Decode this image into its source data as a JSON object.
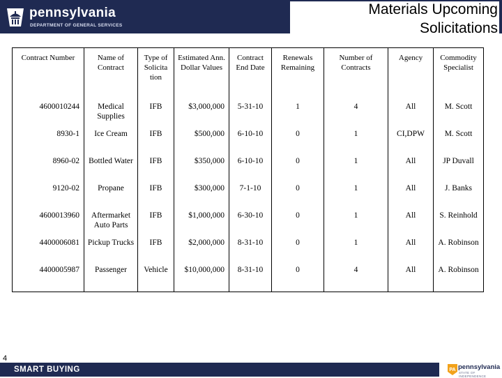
{
  "header": {
    "logo_name": "pennsylvania",
    "logo_dept": "DEPARTMENT OF GENERAL SERVICES",
    "title_line1": "Materials Upcoming",
    "title_line2": "Solicitations"
  },
  "table": {
    "columns": [
      "Contract Number",
      "Name of Contract",
      "Type of Solicita tion",
      "Estimated Ann. Dollar Values",
      "Contract End Date",
      "Renewals Remaining",
      "Number of Contracts",
      "Agency",
      "Commodity Specialist"
    ],
    "rows": [
      [
        "4600010244",
        "Medical Supplies",
        "IFB",
        "$3,000,000",
        "5-31-10",
        "1",
        "4",
        "All",
        "M. Scott"
      ],
      [
        "8930-1",
        "Ice Cream",
        "IFB",
        "$500,000",
        "6-10-10",
        "0",
        "1",
        "CI,DPW",
        "M. Scott"
      ],
      [
        "8960-02",
        "Bottled Water",
        "IFB",
        "$350,000",
        "6-10-10",
        "0",
        "1",
        "All",
        "JP Duvall"
      ],
      [
        "9120-02",
        "Propane",
        "IFB",
        "$300,000",
        "7-1-10",
        "0",
        "1",
        "All",
        "J. Banks"
      ],
      [
        "4600013960",
        "Aftermarket Auto Parts",
        "IFB",
        "$1,000,000",
        "6-30-10",
        "0",
        "1",
        "All",
        "S. Reinhold"
      ],
      [
        "4400006081",
        "Pickup Trucks",
        "IFB",
        "$2,000,000",
        "8-31-10",
        "0",
        "1",
        "All",
        "A. Robinson"
      ],
      [
        "4400005987",
        "Passenger",
        "Vehicle",
        "$10,000,000",
        "8-31-10",
        "0",
        "4",
        "All",
        "A. Robinson"
      ]
    ]
  },
  "footer": {
    "page_number": "4",
    "brand": "SMART BUYING",
    "logo_name": "pennsylvania",
    "logo_tagline": "STATE OF INDEPENDENCE",
    "badge": "PA"
  },
  "colors": {
    "navy": "#1f2a52"
  },
  "icons": [
    "keystone-capitol-icon",
    "pa-badge-icon"
  ]
}
